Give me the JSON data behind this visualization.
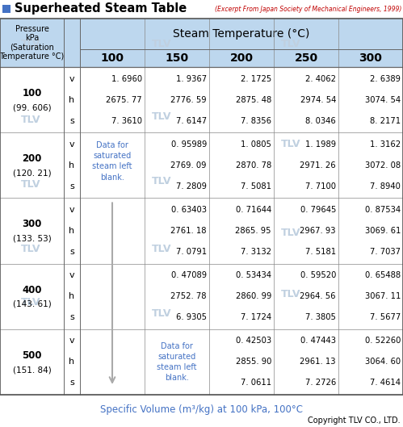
{
  "title": "Superheated Steam Table",
  "title_icon_color": "#4472C4",
  "excerpt_text": "(Excerpt From Japan Society of Mechanical Engineers, 1999)",
  "excerpt_color": "#C00000",
  "header_bg": "#BDD7EE",
  "watermark_color": "#C0D0E0",
  "steam_temp_label": "Steam Temperature (°C)",
  "pressure_label": "Pressure\nkPa\n(Saturation\nTemperature °C)",
  "temp_cols": [
    "100",
    "150",
    "200",
    "250",
    "300"
  ],
  "footer_text": "Specific Volume (m³/kg) at 100 kPa, 100°C",
  "footer_color": "#4472C4",
  "copyright_text": "Copyright TLV CO., LTD.",
  "ann1_color": "#4472C4",
  "ann1_text": "Data for\nsaturated\nsteam left\nblank.",
  "ann2_text": "Data for\nsaturated\nsteam left\nblank.",
  "rows": [
    {
      "pressure": "100",
      "sat_temp": "(99. 606)",
      "v": [
        "1. 6960",
        "1. 9367",
        "2. 1725",
        "2. 4062",
        "2. 6389"
      ],
      "h": [
        "2675. 77",
        "2776. 59",
        "2875. 48",
        "2974. 54",
        "3074. 54"
      ],
      "s": [
        "7. 3610",
        "7. 6147",
        "7. 8356",
        "8. 0346",
        "8. 2171"
      ]
    },
    {
      "pressure": "200",
      "sat_temp": "(120. 21)",
      "v": [
        "",
        "0. 95989",
        "1. 0805",
        "1. 1989",
        "1. 3162"
      ],
      "h": [
        "",
        "2769. 09",
        "2870. 78",
        "2971. 26",
        "3072. 08"
      ],
      "s": [
        "",
        "7. 2809",
        "7. 5081",
        "7. 7100",
        "7. 8940"
      ]
    },
    {
      "pressure": "300",
      "sat_temp": "(133. 53)",
      "v": [
        "",
        "0. 63403",
        "0. 71644",
        "0. 79645",
        "0. 87534"
      ],
      "h": [
        "",
        "2761. 18",
        "2865. 95",
        "2967. 93",
        "3069. 61"
      ],
      "s": [
        "",
        "7. 0791",
        "7. 3132",
        "7. 5181",
        "7. 7037"
      ]
    },
    {
      "pressure": "400",
      "sat_temp": "(143. 61)",
      "v": [
        "",
        "0. 47089",
        "0. 53434",
        "0. 59520",
        "0. 65488"
      ],
      "h": [
        "",
        "2752. 78",
        "2860. 99",
        "2964. 56",
        "3067. 11"
      ],
      "s": [
        "",
        "6. 9305",
        "7. 1724",
        "7. 3805",
        "7. 5677"
      ]
    },
    {
      "pressure": "500",
      "sat_temp": "(151. 84)",
      "v": [
        "",
        "",
        "0. 42503",
        "0. 47443",
        "0. 52260"
      ],
      "h": [
        "",
        "",
        "2855. 90",
        "2961. 13",
        "3064. 60"
      ],
      "s": [
        "",
        "",
        "7. 0611",
        "7. 2726",
        "7. 4614"
      ]
    }
  ]
}
